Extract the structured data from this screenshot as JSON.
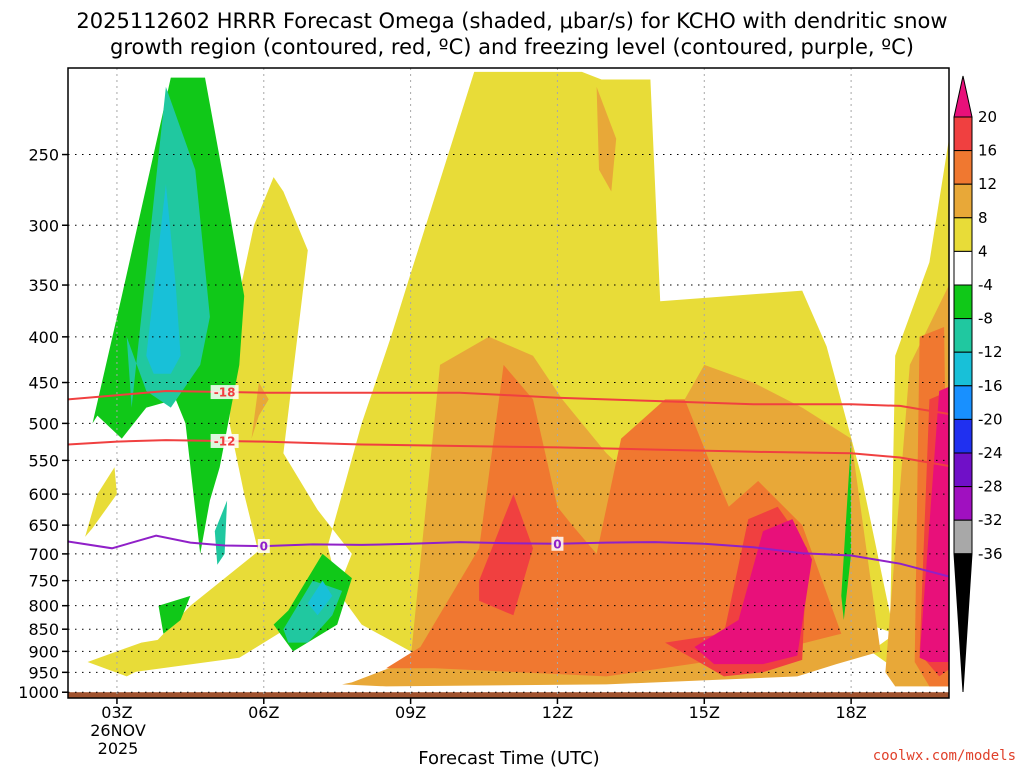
{
  "chart_data": {
    "type": "heatmap",
    "title_lines": [
      "2025112602 HRRR Forecast Omega (shaded, μbar/s) for KCHO with dendritic snow",
      "growth region (contoured, red, ºC) and freezing level (contoured, purple, ºC)"
    ],
    "xlabel": "Forecast Time (UTC)",
    "credit": "coolwx.com/models",
    "x_ticks": [
      "03Z",
      "06Z",
      "09Z",
      "12Z",
      "15Z",
      "18Z"
    ],
    "x_tick_hours": [
      3,
      6,
      9,
      12,
      15,
      18
    ],
    "xlim": [
      2,
      20
    ],
    "date_label": [
      "26NOV",
      "2025"
    ],
    "y_ticks": [
      250,
      300,
      350,
      400,
      450,
      500,
      550,
      600,
      650,
      700,
      750,
      800,
      850,
      900,
      950,
      1000
    ],
    "ylim": [
      200,
      1015
    ],
    "y_scale": "log-pressure",
    "grid": true,
    "colorbar": {
      "labels": [
        "20",
        "16",
        "12",
        "8",
        "4",
        "-4",
        "-8",
        "-12",
        "-16",
        "-20",
        "-24",
        "-28",
        "-32",
        "-36"
      ],
      "colors": [
        "#f04070",
        "#f04040",
        "#f07830",
        "#e8a838",
        "#e8dc38",
        "#ffffff",
        "#10c818",
        "#20c8a0",
        "#18c0d8",
        "#1890ff",
        "#2030f0",
        "#7010c8",
        "#a010c0",
        "#a8a8a8",
        "#000000"
      ],
      "top_color": "#e8107a",
      "bottom_color": "#000000"
    },
    "contours": [
      {
        "label": "-18",
        "color": "#f04040",
        "x": [
          2,
          3,
          4,
          6,
          8,
          10,
          12,
          14,
          16,
          18,
          19,
          20
        ],
        "p": [
          470,
          465,
          460,
          462,
          462,
          462,
          468,
          472,
          476,
          476,
          478,
          488
        ]
      },
      {
        "label": "-12",
        "color": "#f04040",
        "x": [
          2,
          3,
          4,
          6,
          8,
          10,
          12,
          14,
          16,
          18,
          19,
          20
        ],
        "p": [
          528,
          524,
          522,
          524,
          528,
          530,
          532,
          535,
          538,
          540,
          546,
          558
        ]
      },
      {
        "label": "0",
        "color": "#9020c8",
        "x": [
          2,
          2.9,
          3.8,
          4.5,
          5.2,
          6,
          7,
          8,
          9,
          10,
          11,
          12,
          13,
          14,
          15,
          16,
          17,
          18,
          19,
          20
        ],
        "p": [
          678,
          690,
          668,
          680,
          685,
          686,
          683,
          684,
          682,
          679,
          681,
          682,
          680,
          679,
          682,
          688,
          699,
          703,
          718,
          742
        ]
      }
    ],
    "omega_regions": [
      {
        "value": 6,
        "color": "#e8dc38",
        "x": [
          10.3,
          11.3,
          11.5,
          12.5,
          12.9,
          13.9,
          14.1,
          17,
          17.5,
          18.2,
          18.8,
          18.9,
          19.6,
          20,
          20,
          19.6,
          19,
          18.4,
          18.9,
          17.8,
          16.8,
          12,
          9,
          8,
          7.5,
          7.8,
          7.1,
          6.4,
          6.9,
          6.4,
          6.2,
          5.8,
          5.4,
          5.3,
          5.6,
          5.9,
          7.2,
          8,
          8.6,
          9
        ],
        "p": [
          202,
          202,
          202,
          202,
          206,
          206,
          365,
          355,
          410,
          570,
          820,
          420,
          330,
          240,
          985,
          985,
          950,
          900,
          860,
          820,
          700,
          700,
          900,
          840,
          770,
          700,
          625,
          540,
          320,
          275,
          265,
          300,
          380,
          500,
          600,
          700,
          720,
          500,
          400,
          340
        ]
      },
      {
        "value": 6,
        "color": "#e8dc38",
        "x": [
          2.5,
          3,
          2.95,
          2.6,
          2.35
        ],
        "p": [
          655,
          600,
          560,
          600,
          670
        ]
      },
      {
        "value": 6,
        "color": "#e8dc38",
        "x": [
          2.4,
          3.5,
          4.6,
          4.2,
          3.2
        ],
        "p": [
          925,
          880,
          860,
          900,
          960
        ]
      },
      {
        "value": 6,
        "color": "#e8dc38",
        "x": [
          3,
          5.5,
          6.6,
          7.4,
          7.2,
          6.4,
          4.5,
          3.2
        ],
        "p": [
          955,
          915,
          840,
          720,
          650,
          660,
          800,
          950
        ]
      },
      {
        "value": 10,
        "color": "#e8a838",
        "x": [
          7.8,
          9,
          9.6,
          10.6,
          11.5,
          12.1,
          13,
          13.9,
          14.6,
          15,
          16,
          17,
          18,
          18.6,
          17.7,
          16.9,
          13,
          8.5,
          7.6
        ],
        "p": [
          975,
          920,
          430,
          400,
          420,
          470,
          540,
          600,
          470,
          430,
          450,
          480,
          520,
          900,
          930,
          960,
          980,
          985,
          980
        ]
      },
      {
        "value": 10,
        "color": "#e8a838",
        "x": [
          5.75,
          5.9,
          6.1,
          5.9
        ],
        "p": [
          520,
          490,
          470,
          450
        ]
      },
      {
        "value": 10,
        "color": "#e8a838",
        "x": [
          12.8,
          13.2,
          13.1,
          12.85
        ],
        "p": [
          210,
          240,
          275,
          260
        ]
      },
      {
        "value": 10,
        "color": "#e8a838",
        "x": [
          18.7,
          19.2,
          20,
          20,
          18.9
        ],
        "p": [
          950,
          430,
          350,
          985,
          985
        ]
      },
      {
        "value": 14,
        "color": "#f07830",
        "x": [
          8.5,
          9.2,
          10.4,
          10.9,
          11.5,
          12,
          12.3,
          12.8,
          13.3,
          14.2,
          14.6,
          15.1,
          15.5,
          16.1,
          17,
          17.8,
          16.2,
          13,
          9.5
        ],
        "p": [
          940,
          890,
          690,
          430,
          470,
          620,
          650,
          700,
          520,
          470,
          470,
          550,
          620,
          580,
          650,
          860,
          905,
          960,
          940
        ]
      },
      {
        "value": 14,
        "color": "#f07830",
        "x": [
          19.3,
          19.4,
          19.9,
          20,
          19.6
        ],
        "p": [
          925,
          400,
          390,
          985,
          985
        ]
      },
      {
        "value": 18,
        "color": "#f04040",
        "x": [
          10.4,
          11.1,
          11.5,
          11.1,
          10.4
        ],
        "p": [
          750,
          600,
          690,
          820,
          790
        ]
      },
      {
        "value": 18,
        "color": "#f04040",
        "x": [
          14.2,
          15.4,
          15.9,
          16.5,
          17.1,
          17,
          16.2,
          15.4
        ],
        "p": [
          880,
          860,
          640,
          620,
          690,
          920,
          950,
          960
        ]
      },
      {
        "value": 18,
        "color": "#f04040",
        "x": [
          19.4,
          19.6,
          20.2,
          20.5,
          19.8
        ],
        "p": [
          905,
          470,
          455,
          900,
          960
        ]
      },
      {
        "value": 22,
        "color": "#e8107a",
        "x": [
          14.8,
          15.7,
          16.2,
          16.8,
          17.2,
          16.9,
          16.2,
          15.2
        ],
        "p": [
          890,
          830,
          660,
          640,
          710,
          910,
          930,
          930
        ]
      },
      {
        "value": 22,
        "color": "#e8107a",
        "x": [
          19.4,
          19.8,
          20.2,
          20.8,
          20.2,
          19.6
        ],
        "p": [
          915,
          460,
          450,
          900,
          925,
          925
        ]
      },
      {
        "value": -6,
        "color": "#10c818",
        "x": [
          2.5,
          3.1,
          4.1,
          4.8,
          5.2,
          5.6,
          5.5,
          5.1,
          4.9,
          4.7,
          4.4,
          4.2,
          3.6,
          3.1,
          2.6
        ],
        "p": [
          500,
          360,
          205,
          205,
          270,
          360,
          430,
          560,
          610,
          700,
          500,
          470,
          480,
          520,
          490
        ]
      },
      {
        "value": -6,
        "color": "#10c818",
        "x": [
          6.5,
          7.2,
          7.8,
          7.5,
          6.6,
          6.2
        ],
        "p": [
          810,
          700,
          745,
          840,
          900,
          840
        ]
      },
      {
        "value": -6,
        "color": "#10c818",
        "x": [
          3.85,
          4.5,
          4.3,
          3.95
        ],
        "p": [
          800,
          780,
          830,
          860
        ]
      },
      {
        "value": -6,
        "color": "#10c818",
        "x": [
          17.8,
          18,
          18,
          17.85
        ],
        "p": [
          780,
          520,
          700,
          830
        ]
      },
      {
        "value": -10,
        "color": "#20c8a0",
        "x": [
          3.3,
          4,
          4.6,
          4.9,
          4.7,
          4.1,
          3.6,
          3.2
        ],
        "p": [
          480,
          210,
          260,
          380,
          430,
          480,
          460,
          400
        ]
      },
      {
        "value": -10,
        "color": "#20c8a0",
        "x": [
          6.4,
          7,
          7.6,
          7.4,
          6.9,
          6.5
        ],
        "p": [
          850,
          750,
          770,
          820,
          880,
          880
        ]
      },
      {
        "value": -10,
        "color": "#20c8a0",
        "x": [
          5,
          5.25,
          5.2,
          5.05
        ],
        "p": [
          660,
          610,
          700,
          720
        ]
      },
      {
        "value": -14,
        "color": "#18c0d8",
        "x": [
          3.6,
          4,
          4.2,
          4.3,
          4.1,
          3.75
        ],
        "p": [
          420,
          270,
          350,
          420,
          440,
          440
        ]
      },
      {
        "value": -14,
        "color": "#18c0d8",
        "x": [
          6.9,
          7.2,
          7.4,
          7.1
        ],
        "p": [
          795,
          750,
          780,
          820
        ]
      }
    ],
    "terrain_color": "#a0522d",
    "terrain_p": 1000
  }
}
